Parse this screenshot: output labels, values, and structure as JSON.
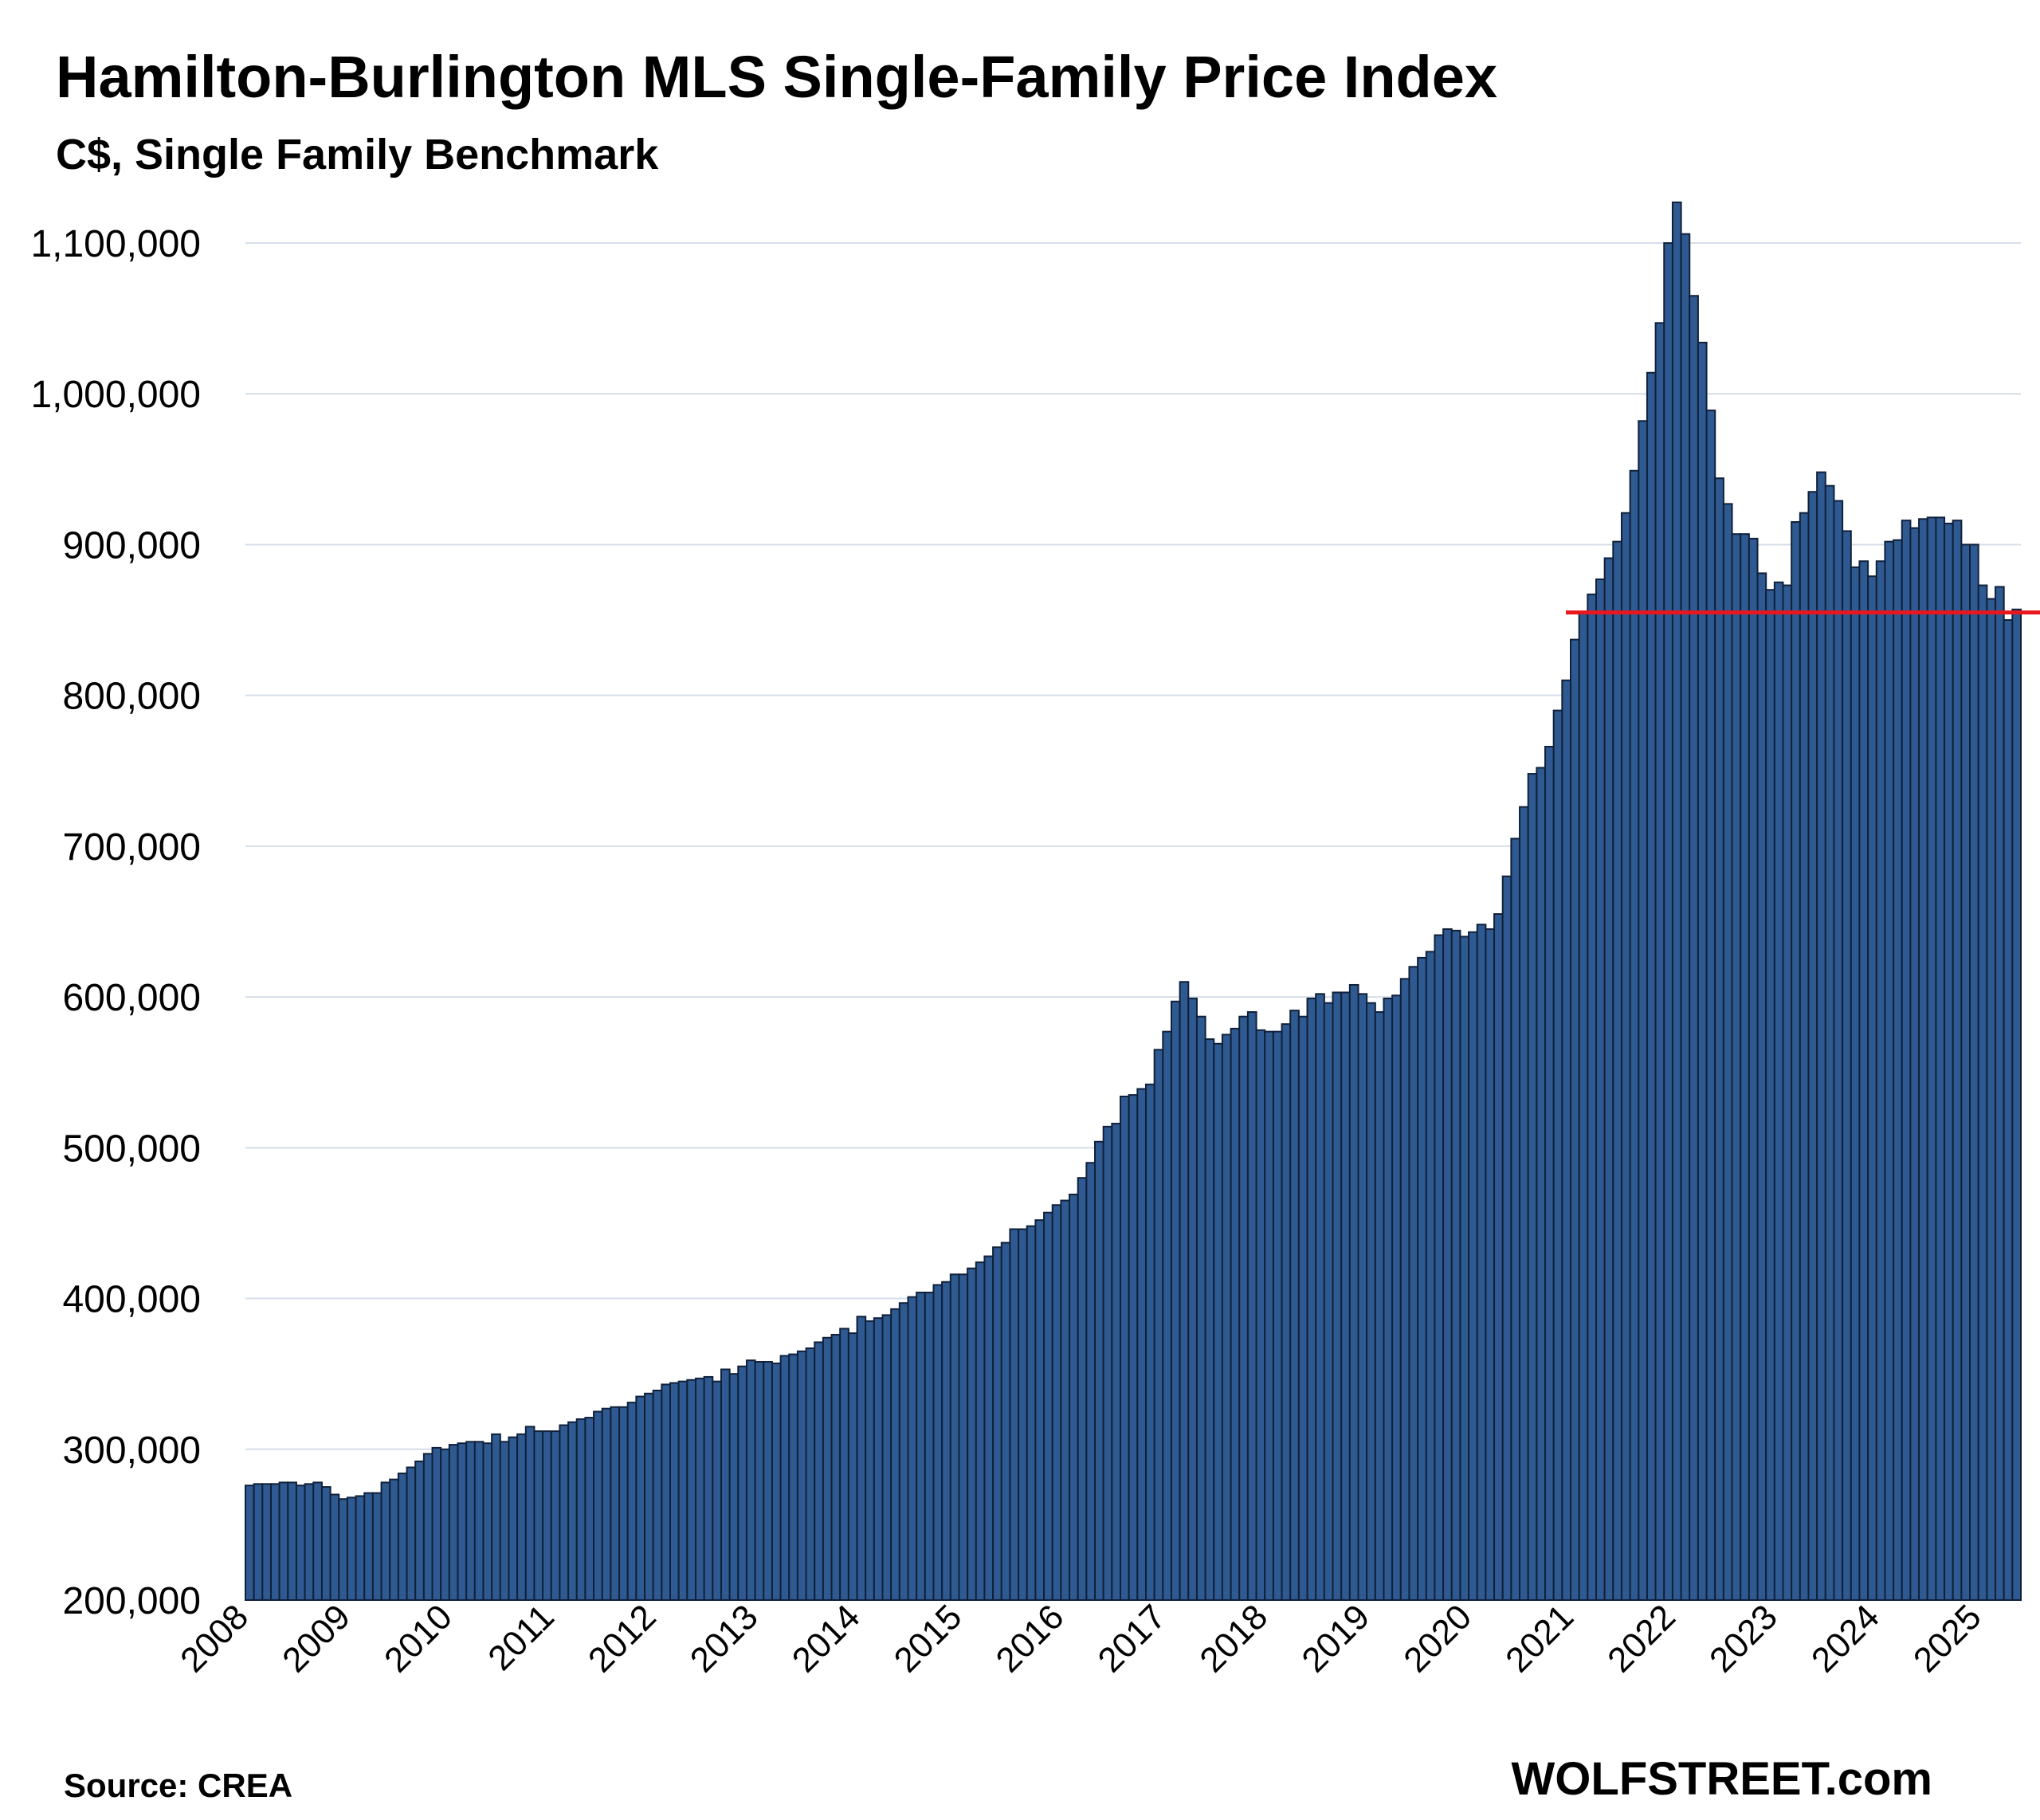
{
  "chart_data": {
    "type": "bar",
    "title": "Hamilton-Burlington MLS Single-Family Price Index",
    "subtitle": "C$, Single Family Benchmark",
    "source": "Source: CREA",
    "brand": "WOLFSTREET.com",
    "ylim": [
      200000,
      1130000
    ],
    "yticks": [
      200000,
      300000,
      400000,
      500000,
      600000,
      700000,
      800000,
      900000,
      1000000,
      1100000
    ],
    "ytick_labels": [
      "200,000",
      "300,000",
      "400,000",
      "500,000",
      "600,000",
      "700,000",
      "800,000",
      "900,000",
      "1,000,000",
      "1,100,000"
    ],
    "xtick_labels": [
      "2008",
      "2009",
      "2010",
      "2011",
      "2012",
      "2013",
      "2014",
      "2015",
      "2016",
      "2017",
      "2018",
      "2019",
      "2020",
      "2021",
      "2022",
      "2023",
      "2024",
      "2025"
    ],
    "grid": true,
    "bar_color": "#2f5a91",
    "reference_line": {
      "value": 855000,
      "start_index": 156,
      "color": "#e8171e"
    },
    "values": [
      276000,
      277000,
      277000,
      277000,
      278000,
      278000,
      276000,
      277000,
      278000,
      275000,
      270000,
      267000,
      268000,
      269000,
      271000,
      271000,
      278000,
      280000,
      284000,
      288000,
      292000,
      297000,
      301000,
      300000,
      303000,
      304000,
      305000,
      305000,
      304000,
      310000,
      305000,
      308000,
      310000,
      315000,
      312000,
      312000,
      312000,
      316000,
      318000,
      320000,
      321000,
      325000,
      327000,
      328000,
      328000,
      331000,
      335000,
      337000,
      339000,
      343000,
      344000,
      345000,
      346000,
      347000,
      348000,
      345000,
      353000,
      350000,
      355000,
      359000,
      358000,
      358000,
      357000,
      362000,
      363000,
      365000,
      367000,
      371000,
      374000,
      376000,
      380000,
      377000,
      388000,
      385000,
      387000,
      389000,
      393000,
      397000,
      401000,
      404000,
      404000,
      409000,
      411000,
      416000,
      416000,
      420000,
      424000,
      428000,
      434000,
      437000,
      446000,
      446000,
      448000,
      452000,
      457000,
      462000,
      465000,
      469000,
      480000,
      490000,
      504000,
      514000,
      516000,
      534000,
      535000,
      539000,
      542000,
      565000,
      577000,
      597000,
      610000,
      599000,
      587000,
      572000,
      569000,
      575000,
      579000,
      587000,
      590000,
      578000,
      577000,
      577000,
      582000,
      591000,
      587000,
      599000,
      602000,
      596000,
      603000,
      603000,
      608000,
      602000,
      596000,
      590000,
      599000,
      601000,
      612000,
      620000,
      626000,
      630000,
      641000,
      645000,
      644000,
      640000,
      643000,
      648000,
      645000,
      655000,
      680000,
      705000,
      726000,
      748000,
      752000,
      766000,
      790000,
      810000,
      837000,
      855000,
      867000,
      877000,
      891000,
      902000,
      921000,
      949000,
      982000,
      1014000,
      1047000,
      1100000,
      1127000,
      1106000,
      1065000,
      1034000,
      989000,
      944000,
      927000,
      907000,
      907000,
      904000,
      881000,
      870000,
      875000,
      873000,
      915000,
      921000,
      935000,
      948000,
      939000,
      929000,
      909000,
      885000,
      889000,
      879000,
      889000,
      902000,
      903000,
      916000,
      911000,
      917000,
      918000,
      918000,
      914000,
      916000,
      900000,
      900000,
      873000,
      864000,
      872000,
      850000,
      857000
    ]
  }
}
